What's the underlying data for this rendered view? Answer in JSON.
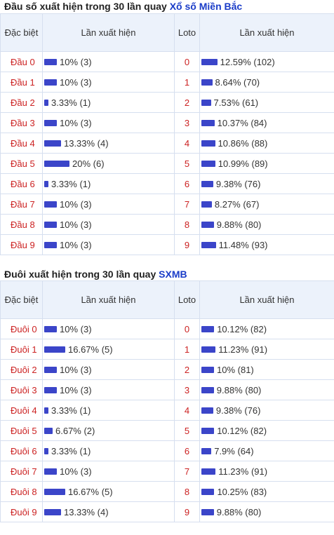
{
  "dau": {
    "title_prefix": "Đầu số xuất hiện trong 30 lần quay",
    "title_link": "Xổ số Miền Bắc",
    "headers": {
      "label": "Đặc biệt",
      "freq": "Lần xuất hiện",
      "loto": "Loto",
      "loto_freq": "Lần xuất hiện"
    },
    "bar_color": "#3b45c9",
    "rows": [
      {
        "label": "Đầu 0",
        "freq": "10% (3)",
        "freq_pct": 10,
        "loto": "0",
        "loto_freq": "12.59% (102)",
        "loto_pct": 12.59
      },
      {
        "label": "Đầu 1",
        "freq": "10% (3)",
        "freq_pct": 10,
        "loto": "1",
        "loto_freq": "8.64% (70)",
        "loto_pct": 8.64
      },
      {
        "label": "Đầu 2",
        "freq": "3.33% (1)",
        "freq_pct": 3.33,
        "loto": "2",
        "loto_freq": "7.53% (61)",
        "loto_pct": 7.53
      },
      {
        "label": "Đầu 3",
        "freq": "10% (3)",
        "freq_pct": 10,
        "loto": "3",
        "loto_freq": "10.37% (84)",
        "loto_pct": 10.37
      },
      {
        "label": "Đầu 4",
        "freq": "13.33% (4)",
        "freq_pct": 13.33,
        "loto": "4",
        "loto_freq": "10.86% (88)",
        "loto_pct": 10.86
      },
      {
        "label": "Đầu 5",
        "freq": "20% (6)",
        "freq_pct": 20,
        "loto": "5",
        "loto_freq": "10.99% (89)",
        "loto_pct": 10.99
      },
      {
        "label": "Đầu 6",
        "freq": "3.33% (1)",
        "freq_pct": 3.33,
        "loto": "6",
        "loto_freq": "9.38% (76)",
        "loto_pct": 9.38
      },
      {
        "label": "Đầu 7",
        "freq": "10% (3)",
        "freq_pct": 10,
        "loto": "7",
        "loto_freq": "8.27% (67)",
        "loto_pct": 8.27
      },
      {
        "label": "Đầu 8",
        "freq": "10% (3)",
        "freq_pct": 10,
        "loto": "8",
        "loto_freq": "9.88% (80)",
        "loto_pct": 9.88
      },
      {
        "label": "Đầu 9",
        "freq": "10% (3)",
        "freq_pct": 10,
        "loto": "9",
        "loto_freq": "11.48% (93)",
        "loto_pct": 11.48
      }
    ]
  },
  "duoi": {
    "title_prefix": "Đuôi xuất hiện trong 30 lần quay",
    "title_link": "SXMB",
    "headers": {
      "label": "Đặc biệt",
      "freq": "Lần xuất hiện",
      "loto": "Loto",
      "loto_freq": "Lần xuất hiện"
    },
    "bar_color": "#3b45c9",
    "rows": [
      {
        "label": "Đuôi 0",
        "freq": "10% (3)",
        "freq_pct": 10,
        "loto": "0",
        "loto_freq": "10.12% (82)",
        "loto_pct": 10.12
      },
      {
        "label": "Đuôi 1",
        "freq": "16.67% (5)",
        "freq_pct": 16.67,
        "loto": "1",
        "loto_freq": "11.23% (91)",
        "loto_pct": 11.23
      },
      {
        "label": "Đuôi 2",
        "freq": "10% (3)",
        "freq_pct": 10,
        "loto": "2",
        "loto_freq": "10% (81)",
        "loto_pct": 10
      },
      {
        "label": "Đuôi 3",
        "freq": "10% (3)",
        "freq_pct": 10,
        "loto": "3",
        "loto_freq": "9.88% (80)",
        "loto_pct": 9.88
      },
      {
        "label": "Đuôi 4",
        "freq": "3.33% (1)",
        "freq_pct": 3.33,
        "loto": "4",
        "loto_freq": "9.38% (76)",
        "loto_pct": 9.38
      },
      {
        "label": "Đuôi 5",
        "freq": "6.67% (2)",
        "freq_pct": 6.67,
        "loto": "5",
        "loto_freq": "10.12% (82)",
        "loto_pct": 10.12
      },
      {
        "label": "Đuôi 6",
        "freq": "3.33% (1)",
        "freq_pct": 3.33,
        "loto": "6",
        "loto_freq": "7.9% (64)",
        "loto_pct": 7.9
      },
      {
        "label": "Đuôi 7",
        "freq": "10% (3)",
        "freq_pct": 10,
        "loto": "7",
        "loto_freq": "11.23% (91)",
        "loto_pct": 11.23
      },
      {
        "label": "Đuôi 8",
        "freq": "16.67% (5)",
        "freq_pct": 16.67,
        "loto": "8",
        "loto_freq": "10.25% (83)",
        "loto_pct": 10.25
      },
      {
        "label": "Đuôi 9",
        "freq": "13.33% (4)",
        "freq_pct": 13.33,
        "loto": "9",
        "loto_freq": "9.88% (80)",
        "loto_pct": 9.88
      }
    ]
  }
}
